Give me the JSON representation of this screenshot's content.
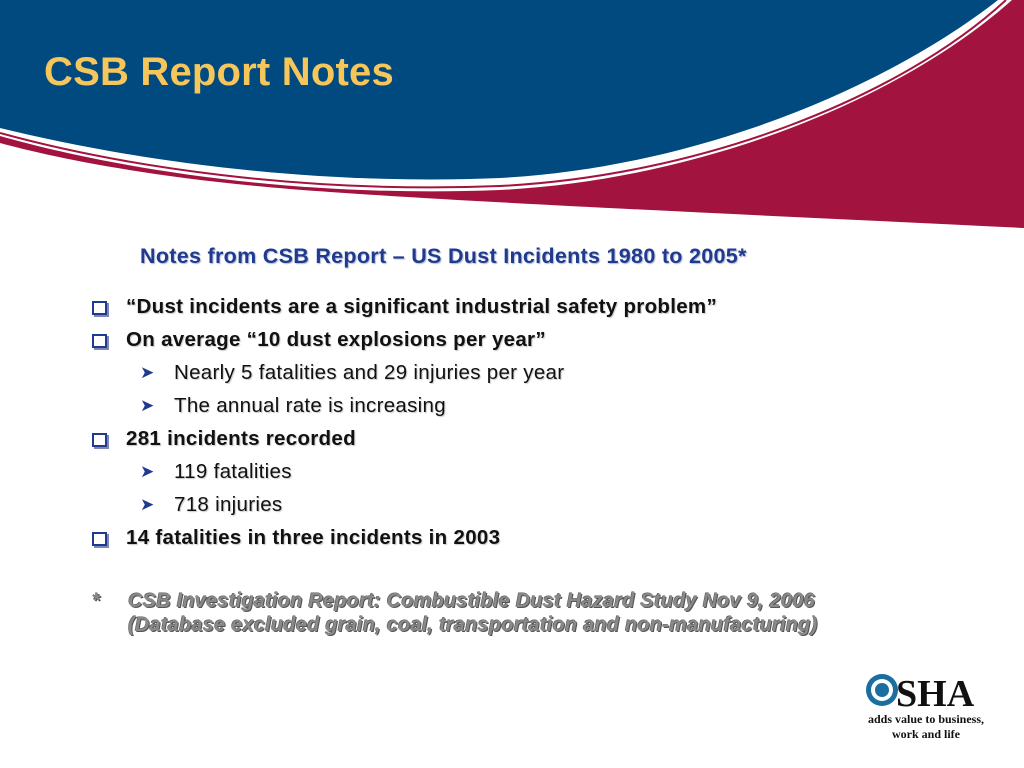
{
  "slide": {
    "title": "CSB Report Notes",
    "subtitle": "Notes from CSB Report – US Dust Incidents 1980 to 2005*"
  },
  "bullets": [
    {
      "level": 1,
      "text": "“Dust incidents are a significant industrial safety problem”"
    },
    {
      "level": 1,
      "text": "On average “10 dust explosions per year”"
    },
    {
      "level": 2,
      "text": "Nearly 5 fatalities and 29 injuries per year"
    },
    {
      "level": 2,
      "text": "The annual rate is increasing"
    },
    {
      "level": 1,
      "text": "281 incidents recorded"
    },
    {
      "level": 2,
      "text": "119 fatalities"
    },
    {
      "level": 2,
      "text": "718 injuries"
    },
    {
      "level": 1,
      "text": "14 fatalities in three incidents in 2003"
    }
  ],
  "footnote": {
    "marker": "*",
    "line1": "CSB Investigation Report: Combustible Dust Hazard Study Nov 9, 2006",
    "line2": "(Database excluded grain, coal, transportation and non-manufacturing)"
  },
  "logo": {
    "wordmark": "OSHA",
    "tagline_line1": "adds value to business,",
    "tagline_line2": "work and life"
  },
  "colors": {
    "header_blue": "#004a80",
    "header_red": "#a3133f",
    "title_gold": "#f7c65a",
    "subtitle_blue": "#1f3a8f"
  },
  "icons": {
    "level1_marker": "hollow-square-bullet-icon",
    "level2_marker": "arrowhead-bullet-icon"
  }
}
